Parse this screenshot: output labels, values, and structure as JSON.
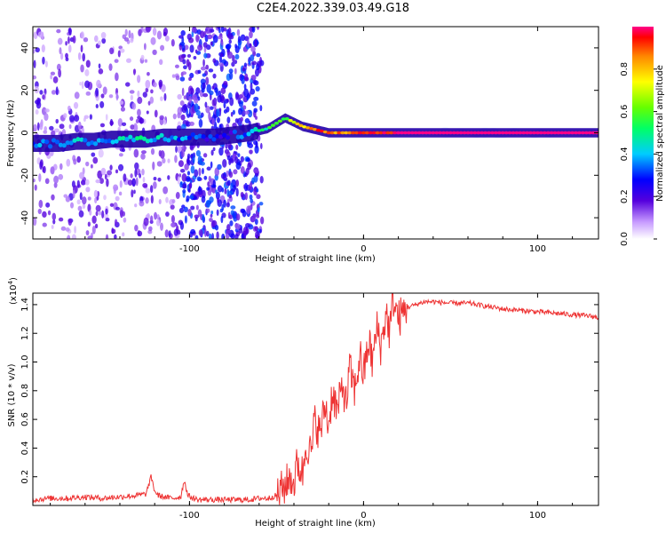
{
  "title": "C2E4.2022.339.03.49.G18",
  "colors": {
    "snr_line": "#ee3333",
    "frame": "#000000"
  },
  "colorbar": {
    "label": "Normalized spectral amplitude",
    "range": [
      0,
      1
    ],
    "ticks": [
      "0.0",
      "0.2",
      "0.4",
      "0.6",
      "0.8"
    ],
    "tick_values": [
      0,
      0.2,
      0.4,
      0.6,
      0.8
    ]
  },
  "chart_data": [
    {
      "type": "heatmap",
      "xlabel": "Height of straight line (km)",
      "ylabel": "Frequency (Hz)",
      "xlim": [
        -190,
        135
      ],
      "ylim": [
        -50,
        50
      ],
      "xticks": [
        -100,
        0,
        100
      ],
      "xtick_labels": [
        "-100",
        "0",
        "100"
      ],
      "yticks": [
        -40,
        -20,
        0,
        20,
        40
      ],
      "ytick_labels": [
        "-40",
        "-20",
        "0",
        "20",
        "40"
      ],
      "colormap": "violet-blue-cyan-green-yellow-red (0-1)",
      "ridge": {
        "x": [
          -185,
          -175,
          -165,
          -155,
          -145,
          -135,
          -125,
          -115,
          -105,
          -95,
          -85,
          -75,
          -65,
          -55,
          -45,
          -40,
          -35,
          -30,
          -25,
          -20,
          -10,
          0,
          10,
          20,
          40,
          60,
          80,
          100,
          120,
          135
        ],
        "y": [
          -5,
          -5,
          -4,
          -4,
          -3,
          -3,
          -3,
          -2,
          -2,
          -2,
          -2,
          -1,
          0,
          2,
          7,
          5,
          3,
          2,
          1,
          0,
          0,
          0,
          0,
          0,
          0,
          0,
          0,
          0,
          0,
          0
        ],
        "amplitude": [
          0.35,
          0.4,
          0.4,
          0.35,
          0.4,
          0.45,
          0.45,
          0.4,
          0.35,
          0.3,
          0.25,
          0.25,
          0.4,
          0.5,
          0.6,
          0.75,
          0.8,
          0.85,
          0.9,
          0.9,
          0.85,
          0.9,
          0.95,
          1.0,
          1.0,
          1.0,
          1.0,
          1.0,
          1.0,
          1.0
        ]
      }
    },
    {
      "type": "line",
      "xlabel": "Height of straight line (km)",
      "ylabel": "SNR (10 * v/v)",
      "y_multiplier": "(x10",
      "y_multiplier_exp": "4",
      "y_multiplier_close": ")",
      "xlim": [
        -190,
        135
      ],
      "ylim": [
        0,
        1.48
      ],
      "xticks": [
        -100,
        0,
        100
      ],
      "xtick_labels": [
        "-100",
        "0",
        "100"
      ],
      "yticks": [
        0.2,
        0.4,
        0.6,
        0.8,
        1.0,
        1.2,
        1.4
      ],
      "ytick_labels": [
        "0.2",
        "0.4",
        "0.6",
        "0.8",
        "1.0",
        "1.2",
        "1.4"
      ],
      "series": [
        {
          "x": [
            -190,
            -180,
            -170,
            -160,
            -150,
            -140,
            -130,
            -125,
            -122,
            -120,
            -118,
            -115,
            -110,
            -105,
            -103,
            -101,
            -98,
            -95,
            -90,
            -85,
            -80,
            -75,
            -70,
            -65,
            -60,
            -55,
            -50,
            -45,
            -42,
            -40,
            -38,
            -35,
            -33,
            -30,
            -28,
            -25,
            -22,
            -20,
            -18,
            -15,
            -12,
            -10,
            -8,
            -5,
            -2,
            0,
            3,
            5,
            8,
            10,
            13,
            15,
            17,
            20,
            25,
            30,
            35,
            40,
            50,
            60,
            70,
            80,
            90,
            100,
            110,
            120,
            130,
            135
          ],
          "y": [
            0.04,
            0.05,
            0.05,
            0.06,
            0.05,
            0.06,
            0.07,
            0.08,
            0.2,
            0.1,
            0.07,
            0.06,
            0.05,
            0.06,
            0.18,
            0.07,
            0.05,
            0.04,
            0.04,
            0.04,
            0.04,
            0.04,
            0.04,
            0.04,
            0.05,
            0.05,
            0.07,
            0.14,
            0.2,
            0.15,
            0.3,
            0.22,
            0.45,
            0.35,
            0.6,
            0.5,
            0.7,
            0.55,
            0.8,
            0.65,
            0.85,
            0.7,
            0.95,
            0.8,
            1.05,
            0.9,
            1.15,
            1.0,
            1.25,
            1.1,
            1.35,
            1.2,
            1.45,
            1.3,
            1.38,
            1.4,
            1.42,
            1.42,
            1.41,
            1.41,
            1.39,
            1.37,
            1.36,
            1.35,
            1.34,
            1.33,
            1.32,
            1.31
          ]
        }
      ]
    }
  ]
}
